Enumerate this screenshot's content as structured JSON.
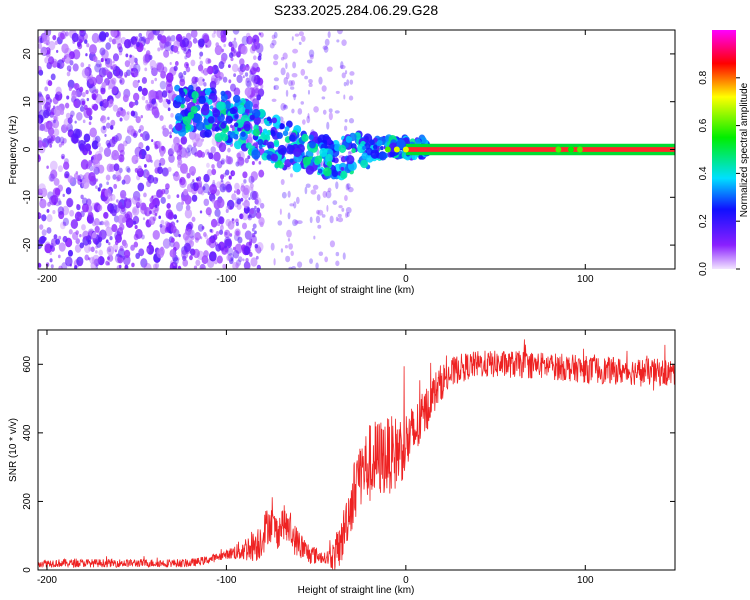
{
  "title": "S233.2025.284.06.29.G28",
  "colors": {
    "snr_line": "#ee2222",
    "carrier_band": "#ff2a2a",
    "carrier_edge": "#00dd33"
  },
  "chart_data": [
    {
      "type": "heatmap",
      "name": "spectrogram",
      "xlabel": "Height of straight line (km)",
      "ylabel": "Frequency (Hz)",
      "xlim": [
        -205,
        150
      ],
      "ylim": [
        -25,
        25
      ],
      "xticks": [
        -200,
        -100,
        0,
        100
      ],
      "yticks": [
        -20,
        -10,
        0,
        10,
        20
      ],
      "colorbar": {
        "label": "Normalized spectral amplitude",
        "range": [
          0.0,
          1.0
        ],
        "ticks": [
          0.0,
          0.2,
          0.4,
          0.6,
          0.8
        ]
      },
      "features": [
        {
          "description": "sparse noise region",
          "x_range": [
            -205,
            -95
          ],
          "freq_range": [
            -25,
            25
          ],
          "amplitude": 0.15
        },
        {
          "description": "signal ridge",
          "points": [
            [
              -125,
              8
            ],
            [
              -110,
              8
            ],
            [
              -100,
              7
            ],
            [
              -90,
              5
            ],
            [
              -80,
              3
            ],
            [
              -70,
              1
            ],
            [
              -60,
              0
            ],
            [
              -50,
              -1
            ],
            [
              -40,
              -2
            ],
            [
              -30,
              -1
            ],
            [
              -20,
              0
            ],
            [
              -10,
              0.5
            ],
            [
              0,
              0.5
            ],
            [
              10,
              0.3
            ]
          ],
          "amplitude": 0.35
        },
        {
          "description": "carrier line",
          "x_range": [
            0,
            150
          ],
          "freq": 0.0,
          "amplitude": 0.95
        }
      ]
    },
    {
      "type": "line",
      "name": "snr",
      "xlabel": "Height of straight line (km)",
      "ylabel": "SNR (10 * v/v)",
      "xlim": [
        -205,
        150
      ],
      "ylim": [
        0,
        700
      ],
      "xticks": [
        -200,
        -100,
        0,
        100
      ],
      "yticks": [
        0,
        200,
        400,
        600
      ],
      "envelope": [
        [
          -205,
          20
        ],
        [
          -120,
          20
        ],
        [
          -110,
          30
        ],
        [
          -100,
          45
        ],
        [
          -90,
          60
        ],
        [
          -82,
          80
        ],
        [
          -76,
          140
        ],
        [
          -72,
          110
        ],
        [
          -68,
          140
        ],
        [
          -62,
          90
        ],
        [
          -55,
          50
        ],
        [
          -45,
          35
        ],
        [
          -40,
          40
        ],
        [
          -36,
          80
        ],
        [
          -33,
          150
        ],
        [
          -30,
          200
        ],
        [
          -27,
          280
        ],
        [
          -22,
          300
        ],
        [
          -18,
          320
        ],
        [
          -12,
          330
        ],
        [
          -6,
          340
        ],
        [
          0,
          370
        ],
        [
          5,
          400
        ],
        [
          10,
          450
        ],
        [
          15,
          510
        ],
        [
          20,
          550
        ],
        [
          25,
          570
        ],
        [
          30,
          590
        ],
        [
          40,
          600
        ],
        [
          60,
          600
        ],
        [
          80,
          595
        ],
        [
          100,
          585
        ],
        [
          120,
          580
        ],
        [
          150,
          575
        ]
      ],
      "noise_amplitude": [
        [
          -205,
          12
        ],
        [
          -100,
          12
        ],
        [
          -80,
          60
        ],
        [
          -60,
          45
        ],
        [
          -45,
          15
        ],
        [
          -38,
          60
        ],
        [
          -20,
          120
        ],
        [
          -5,
          110
        ],
        [
          15,
          60
        ],
        [
          30,
          40
        ],
        [
          150,
          40
        ]
      ]
    }
  ]
}
